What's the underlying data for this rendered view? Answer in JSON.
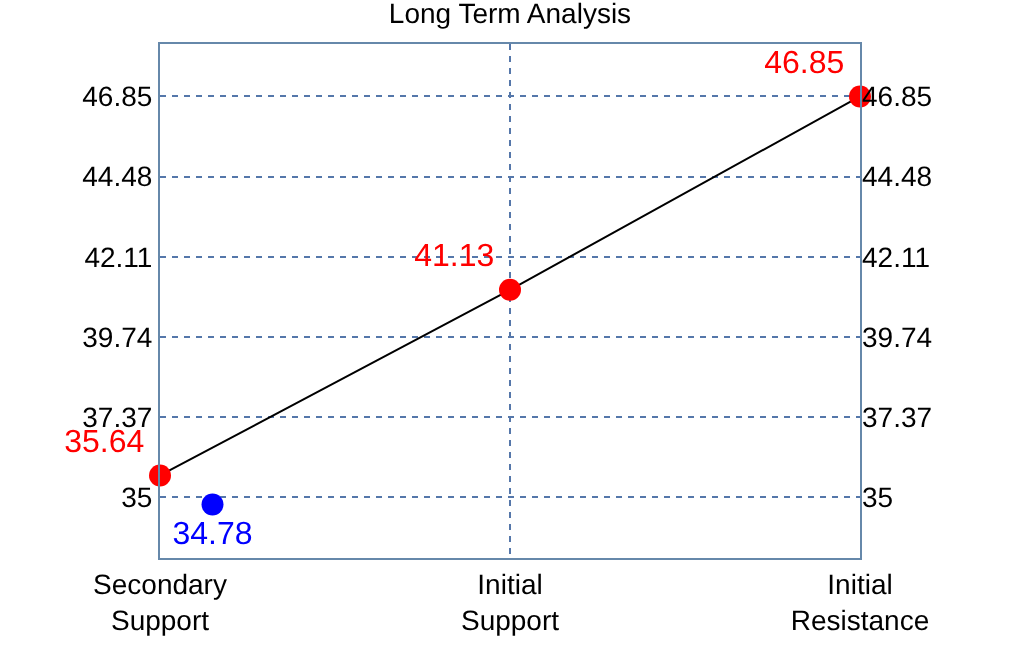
{
  "chart_data": {
    "type": "line",
    "title": "Long Term Analysis",
    "categories": [
      "Secondary\nSupport",
      "Initial\nSupport",
      "Initial\nResistance"
    ],
    "ylim": [
      33.2,
      48.4
    ],
    "yticks": [
      35,
      37.37,
      39.74,
      42.11,
      44.48,
      46.85
    ],
    "y2lim": [
      33.2,
      48.4
    ],
    "y2ticks": [
      35,
      37.37,
      39.74,
      42.11,
      44.48,
      46.85
    ],
    "grid": true,
    "series": [
      {
        "type": "line",
        "color": "#000000",
        "marker": "none",
        "values": [
          35.64,
          41.13,
          46.85
        ]
      },
      {
        "type": "scatter",
        "color": "#ff0000",
        "marker": "circle",
        "values": [
          35.64,
          41.13,
          46.85
        ],
        "value_labels": [
          "35.64",
          "41.13",
          "46.85"
        ]
      },
      {
        "type": "scatter",
        "color": "#0000ff",
        "marker": "circle",
        "x": [
          "Secondary\nSupport"
        ],
        "values": [
          34.78
        ],
        "value_labels": [
          "34.78"
        ]
      }
    ]
  }
}
